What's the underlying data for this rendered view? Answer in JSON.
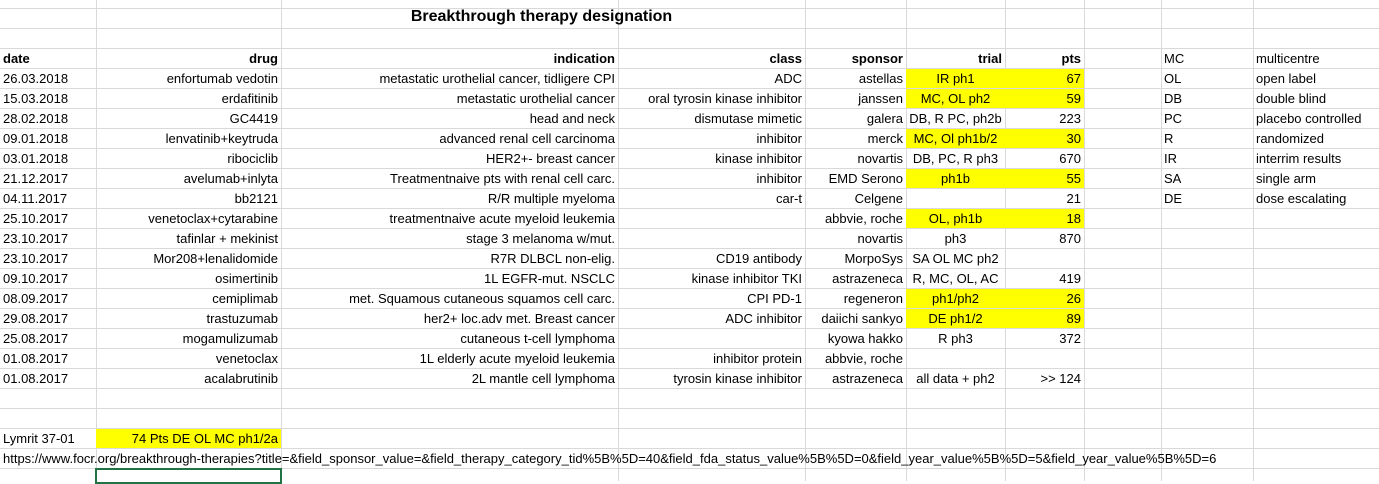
{
  "title": "Breakthrough therapy designation",
  "headers": {
    "date": "date",
    "drug": "drug",
    "indication": "indication",
    "class": "class",
    "sponsor": "sponsor",
    "trial": "trial",
    "pts": "pts"
  },
  "rows": [
    {
      "date": "26.03.2018",
      "drug": "enfortumab vedotin",
      "indication": "metastatic urothelial cancer, tidligere CPI",
      "class": "ADC",
      "sponsor": "astellas",
      "trial": "IR ph1",
      "pts": "67",
      "trial_highlight": true,
      "pts_highlight": true
    },
    {
      "date": "15.03.2018",
      "drug": "erdafitinib",
      "indication": "metastatic urothelial cancer",
      "class": "oral tyrosin kinase inhibitor",
      "sponsor": "janssen",
      "trial": "MC, OL ph2",
      "pts": "59",
      "trial_highlight": true,
      "pts_highlight": true
    },
    {
      "date": "28.02.2018",
      "drug": "GC4419",
      "indication": "head and neck",
      "class": "dismutase mimetic",
      "sponsor": "galera",
      "trial": "DB, R PC, ph2b",
      "pts": "223",
      "trial_highlight": false,
      "pts_highlight": false
    },
    {
      "date": "09.01.2018",
      "drug": "lenvatinib+keytruda",
      "indication": "advanced renal cell carcinoma",
      "class": "inhibitor",
      "sponsor": "merck",
      "trial": "MC, Ol ph1b/2",
      "pts": "30",
      "trial_highlight": true,
      "pts_highlight": true
    },
    {
      "date": "03.01.2018",
      "drug": "ribociclib",
      "indication": "HER2+- breast cancer",
      "class": "kinase inhibitor",
      "sponsor": "novartis",
      "trial": "DB, PC, R ph3",
      "pts": "670",
      "trial_highlight": false,
      "pts_highlight": false
    },
    {
      "date": "21.12.2017",
      "drug": "avelumab+inlyta",
      "indication": "Treatmentnaive pts with renal cell carc.",
      "class": "inhibitor",
      "sponsor": "EMD Serono",
      "trial": "ph1b",
      "pts": "55",
      "trial_highlight": true,
      "pts_highlight": true
    },
    {
      "date": "04.11.2017",
      "drug": "bb2121",
      "indication": "R/R multiple myeloma",
      "class": "car-t",
      "sponsor": "Celgene",
      "trial": "",
      "pts": "21",
      "trial_highlight": false,
      "pts_highlight": false
    },
    {
      "date": "25.10.2017",
      "drug": "venetoclax+cytarabine",
      "indication": "treatmentnaive acute myeloid leukemia",
      "class": "",
      "sponsor": "abbvie, roche",
      "trial": "OL, ph1b",
      "pts": "18",
      "trial_highlight": true,
      "pts_highlight": true
    },
    {
      "date": "23.10.2017",
      "drug": "tafinlar + mekinist",
      "indication": "stage 3 melanoma w/mut.",
      "class": "",
      "sponsor": "novartis",
      "trial": "ph3",
      "pts": "870",
      "trial_highlight": false,
      "pts_highlight": false
    },
    {
      "date": "23.10.2017",
      "drug": "Mor208+lenalidomide",
      "indication": "R7R DLBCL non-elig.",
      "class": "CD19 antibody",
      "sponsor": "MorpoSys",
      "trial": "SA OL MC ph2",
      "pts": "",
      "trial_highlight": false,
      "pts_highlight": false
    },
    {
      "date": "09.10.2017",
      "drug": "osimertinib",
      "indication": "1L EGFR-mut. NSCLC",
      "class": "kinase inhibitor TKI",
      "sponsor": "astrazeneca",
      "trial": "R, MC, OL, AC",
      "pts": "419",
      "trial_highlight": false,
      "pts_highlight": false
    },
    {
      "date": "08.09.2017",
      "drug": "cemiplimab",
      "indication": "met. Squamous cutaneous squamos cell carc.",
      "class": "CPI  PD-1",
      "sponsor": "regeneron",
      "trial": "ph1/ph2",
      "pts": "26",
      "trial_highlight": true,
      "pts_highlight": true
    },
    {
      "date": "29.08.2017",
      "drug": "trastuzumab",
      "indication": "her2+ loc.adv met. Breast cancer",
      "class": "ADC inhibitor",
      "sponsor": "daiichi sankyo",
      "trial": "DE  ph1/2",
      "pts": "89",
      "trial_highlight": true,
      "pts_highlight": true
    },
    {
      "date": "25.08.2017",
      "drug": "mogamulizumab",
      "indication": "cutaneous t-cell lymphoma",
      "class": "",
      "sponsor": "kyowa hakko",
      "trial": "R ph3",
      "pts": "372",
      "trial_highlight": false,
      "pts_highlight": false
    },
    {
      "date": "01.08.2017",
      "drug": "venetoclax",
      "indication": "1L elderly acute myeloid leukemia",
      "class": "inhibitor protein",
      "sponsor": "abbvie, roche",
      "trial": "",
      "pts": "",
      "trial_highlight": false,
      "pts_highlight": false
    },
    {
      "date": "01.08.2017",
      "drug": "acalabrutinib",
      "indication": "2L mantle cell lymphoma",
      "class": "tyrosin kinase inhibitor",
      "sponsor": "astrazeneca",
      "trial": "all data + ph2",
      "pts": ">> 124",
      "trial_highlight": false,
      "pts_highlight": false
    }
  ],
  "legend": [
    {
      "abbr": "MC",
      "meaning": "multicentre"
    },
    {
      "abbr": "OL",
      "meaning": "open label"
    },
    {
      "abbr": "DB",
      "meaning": "double blind"
    },
    {
      "abbr": "PC",
      "meaning": "placebo controlled"
    },
    {
      "abbr": "R",
      "meaning": "randomized"
    },
    {
      "abbr": "IR",
      "meaning": "interrim results"
    },
    {
      "abbr": "SA",
      "meaning": "single arm"
    },
    {
      "abbr": "DE",
      "meaning": "dose escalating"
    }
  ],
  "footer": {
    "label": "Lymrit 37-01",
    "note": "74 Pts DE OL MC ph1/2a",
    "url": "https://www.focr.org/breakthrough-therapies?title=&field_sponsor_value=&field_therapy_category_tid%5B%5D=40&field_fda_status_value%5B%5D=0&field_year_value%5B%5D=5&field_year_value%5B%5D=6"
  },
  "colors": {
    "highlight": "#ffff00",
    "gridline": "#d9d9d9",
    "selection": "#217346"
  }
}
